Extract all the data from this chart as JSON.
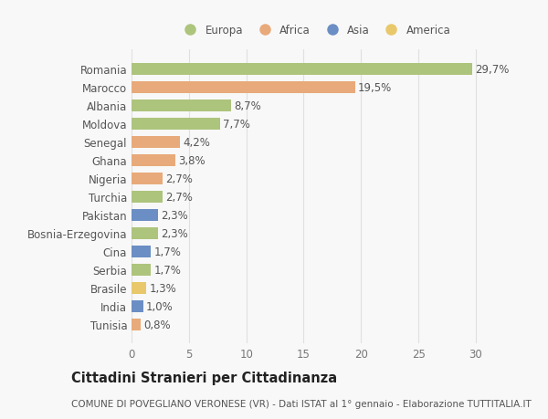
{
  "countries": [
    "Romania",
    "Marocco",
    "Albania",
    "Moldova",
    "Senegal",
    "Ghana",
    "Nigeria",
    "Turchia",
    "Pakistan",
    "Bosnia-Erzegovina",
    "Cina",
    "Serbia",
    "Brasile",
    "India",
    "Tunisia"
  ],
  "values": [
    29.7,
    19.5,
    8.7,
    7.7,
    4.2,
    3.8,
    2.7,
    2.7,
    2.3,
    2.3,
    1.7,
    1.7,
    1.3,
    1.0,
    0.8
  ],
  "labels": [
    "29,7%",
    "19,5%",
    "8,7%",
    "7,7%",
    "4,2%",
    "3,8%",
    "2,7%",
    "2,7%",
    "2,3%",
    "2,3%",
    "1,7%",
    "1,7%",
    "1,3%",
    "1,0%",
    "0,8%"
  ],
  "continents": [
    "Europa",
    "Africa",
    "Europa",
    "Europa",
    "Africa",
    "Africa",
    "Africa",
    "Europa",
    "Asia",
    "Europa",
    "Asia",
    "Europa",
    "America",
    "Asia",
    "Africa"
  ],
  "continent_colors": {
    "Europa": "#adc47c",
    "Africa": "#e8aa7a",
    "Asia": "#6b8ec4",
    "America": "#e8c86a"
  },
  "legend_order": [
    "Europa",
    "Africa",
    "Asia",
    "America"
  ],
  "title": "Cittadini Stranieri per Cittadinanza",
  "subtitle": "COMUNE DI POVEGLIANO VERONESE (VR) - Dati ISTAT al 1° gennaio - Elaborazione TUTTITALIA.IT",
  "xlim": [
    0,
    32
  ],
  "xticks": [
    0,
    5,
    10,
    15,
    20,
    25,
    30
  ],
  "background_color": "#f8f8f8",
  "grid_color": "#e0e0e0",
  "bar_height": 0.65,
  "label_fontsize": 8.5,
  "title_fontsize": 10.5,
  "subtitle_fontsize": 7.5
}
